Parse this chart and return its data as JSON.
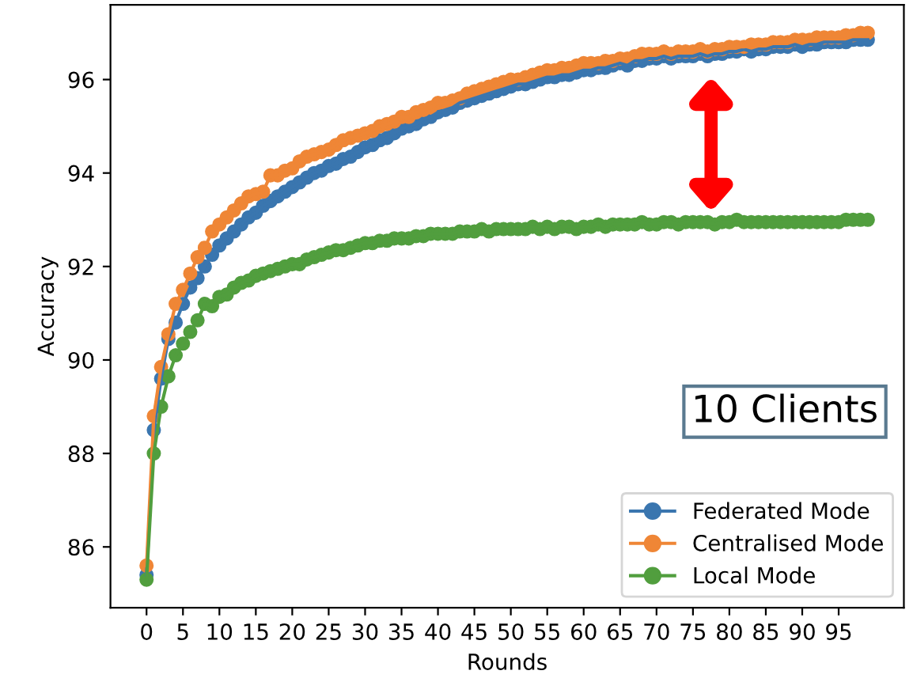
{
  "chart_data": {
    "type": "line",
    "xlabel": "Rounds",
    "ylabel": "Accuracy",
    "x": [
      0,
      1,
      2,
      3,
      4,
      5,
      6,
      7,
      8,
      9,
      10,
      11,
      12,
      13,
      14,
      15,
      16,
      17,
      18,
      19,
      20,
      21,
      22,
      23,
      24,
      25,
      26,
      27,
      28,
      29,
      30,
      31,
      32,
      33,
      34,
      35,
      36,
      37,
      38,
      39,
      40,
      41,
      42,
      43,
      44,
      45,
      46,
      47,
      48,
      49,
      50,
      51,
      52,
      53,
      54,
      55,
      56,
      57,
      58,
      59,
      60,
      61,
      62,
      63,
      64,
      65,
      66,
      67,
      68,
      69,
      70,
      71,
      72,
      73,
      74,
      75,
      76,
      77,
      78,
      79,
      80,
      81,
      82,
      83,
      84,
      85,
      86,
      87,
      88,
      89,
      90,
      91,
      92,
      93,
      94,
      95,
      96,
      97,
      98,
      99
    ],
    "series": [
      {
        "name": "Federated Mode",
        "color": "#3a76af",
        "values": [
          85.4,
          88.5,
          89.6,
          90.45,
          90.8,
          91.2,
          91.55,
          91.75,
          92.0,
          92.25,
          92.45,
          92.6,
          92.75,
          92.9,
          93.05,
          93.15,
          93.3,
          93.4,
          93.5,
          93.6,
          93.7,
          93.8,
          93.9,
          94.0,
          94.05,
          94.15,
          94.2,
          94.3,
          94.35,
          94.45,
          94.55,
          94.6,
          94.7,
          94.75,
          94.85,
          94.95,
          95.0,
          95.05,
          95.15,
          95.2,
          95.3,
          95.35,
          95.4,
          95.5,
          95.55,
          95.6,
          95.65,
          95.7,
          95.75,
          95.8,
          95.85,
          95.9,
          95.9,
          95.95,
          96.0,
          96.05,
          96.05,
          96.1,
          96.1,
          96.15,
          96.2,
          96.2,
          96.25,
          96.25,
          96.3,
          96.35,
          96.3,
          96.4,
          96.4,
          96.45,
          96.45,
          96.5,
          96.45,
          96.5,
          96.5,
          96.5,
          96.55,
          96.5,
          96.55,
          96.55,
          96.6,
          96.6,
          96.65,
          96.6,
          96.65,
          96.65,
          96.7,
          96.7,
          96.7,
          96.75,
          96.7,
          96.75,
          96.75,
          96.8,
          96.8,
          96.8,
          96.8,
          96.85,
          96.85,
          96.85
        ]
      },
      {
        "name": "Centralised Mode",
        "color": "#ef8636",
        "values": [
          85.6,
          88.8,
          89.85,
          90.55,
          91.2,
          91.5,
          91.85,
          92.2,
          92.4,
          92.75,
          92.9,
          93.05,
          93.2,
          93.35,
          93.5,
          93.55,
          93.6,
          93.95,
          93.95,
          94.05,
          94.1,
          94.25,
          94.35,
          94.4,
          94.45,
          94.5,
          94.6,
          94.7,
          94.75,
          94.8,
          94.85,
          94.9,
          95.0,
          95.05,
          95.1,
          95.2,
          95.2,
          95.3,
          95.35,
          95.4,
          95.5,
          95.5,
          95.55,
          95.6,
          95.7,
          95.75,
          95.8,
          95.85,
          95.9,
          95.95,
          96.0,
          96.0,
          96.05,
          96.1,
          96.15,
          96.2,
          96.2,
          96.25,
          96.25,
          96.3,
          96.35,
          96.35,
          96.35,
          96.4,
          96.4,
          96.45,
          96.45,
          96.5,
          96.55,
          96.55,
          96.55,
          96.6,
          96.55,
          96.6,
          96.6,
          96.6,
          96.65,
          96.6,
          96.65,
          96.65,
          96.7,
          96.7,
          96.7,
          96.75,
          96.75,
          96.75,
          96.8,
          96.8,
          96.8,
          96.85,
          96.85,
          96.85,
          96.9,
          96.9,
          96.9,
          96.9,
          96.95,
          96.95,
          97.0,
          97.0
        ]
      },
      {
        "name": "Local Mode",
        "color": "#519e3e",
        "values": [
          85.3,
          88.0,
          89.0,
          89.65,
          90.1,
          90.35,
          90.6,
          90.85,
          91.2,
          91.15,
          91.35,
          91.4,
          91.55,
          91.65,
          91.7,
          91.8,
          91.85,
          91.9,
          91.95,
          92.0,
          92.05,
          92.05,
          92.15,
          92.2,
          92.25,
          92.3,
          92.35,
          92.35,
          92.4,
          92.45,
          92.5,
          92.5,
          92.55,
          92.55,
          92.6,
          92.6,
          92.6,
          92.65,
          92.65,
          92.7,
          92.7,
          92.7,
          92.7,
          92.75,
          92.75,
          92.75,
          92.8,
          92.75,
          92.8,
          92.8,
          92.8,
          92.8,
          92.8,
          92.85,
          92.8,
          92.85,
          92.8,
          92.85,
          92.85,
          92.8,
          92.85,
          92.85,
          92.9,
          92.85,
          92.9,
          92.9,
          92.9,
          92.9,
          92.95,
          92.9,
          92.9,
          92.95,
          92.95,
          92.9,
          92.95,
          92.95,
          92.95,
          92.95,
          92.9,
          92.95,
          92.95,
          93.0,
          92.95,
          92.95,
          92.95,
          92.95,
          92.95,
          92.95,
          92.95,
          92.95,
          92.95,
          92.95,
          92.95,
          92.95,
          92.95,
          92.95,
          93.0,
          93.0,
          93.0,
          93.0
        ]
      }
    ],
    "xlim": [
      -4.95,
      103.95
    ],
    "xticks": [
      0,
      5,
      10,
      15,
      20,
      25,
      30,
      35,
      40,
      45,
      50,
      55,
      60,
      65,
      70,
      75,
      80,
      85,
      90,
      95
    ],
    "ylim": [
      84.7,
      97.6
    ],
    "yticks": [
      86,
      88,
      90,
      92,
      94,
      96
    ],
    "annotations": [
      "10 Clients"
    ],
    "marker": "circle",
    "line_style": "solid",
    "legend": "bottom right",
    "grid": false
  }
}
